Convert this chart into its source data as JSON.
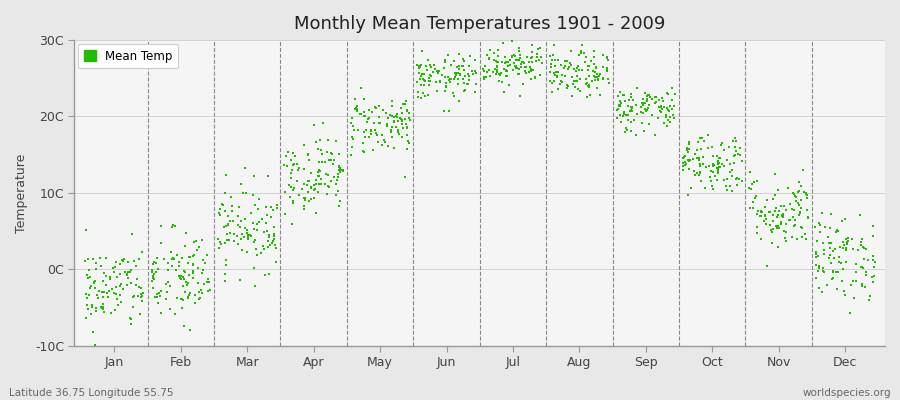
{
  "title": "Monthly Mean Temperatures 1901 - 2009",
  "ylabel": "Temperature",
  "xlabel_bottom_left": "Latitude 36.75 Longitude 55.75",
  "xlabel_bottom_right": "worldspecies.org",
  "ylim": [
    -10,
    30
  ],
  "yticks": [
    -10,
    0,
    10,
    20,
    30
  ],
  "ytick_labels": [
    "-10C",
    "0C",
    "10C",
    "20C",
    "30C"
  ],
  "months": [
    "Jan",
    "Feb",
    "Mar",
    "Apr",
    "May",
    "Jun",
    "Jul",
    "Aug",
    "Sep",
    "Oct",
    "Nov",
    "Dec"
  ],
  "dot_color": "#22bb00",
  "dot_size": 4,
  "background_color": "#e8e8e8",
  "plot_bg_color": "#f5f5f5",
  "legend_label": "Mean Temp",
  "num_years": 109,
  "mean_temps": [
    -2.5,
    -1.2,
    5.5,
    12.5,
    19.0,
    25.0,
    27.0,
    25.5,
    21.0,
    14.0,
    7.5,
    1.5
  ],
  "std_temps": [
    2.8,
    3.2,
    2.8,
    2.5,
    2.0,
    1.5,
    1.5,
    1.5,
    1.5,
    2.0,
    2.5,
    2.8
  ],
  "seed": 42,
  "vline_color": "#888888",
  "spine_color": "#999999",
  "grid_color": "#cccccc"
}
